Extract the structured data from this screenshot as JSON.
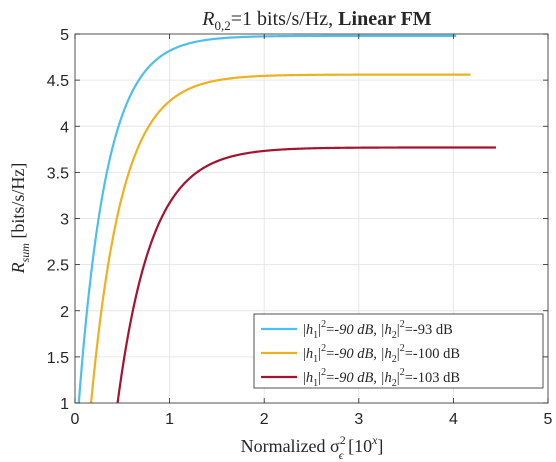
{
  "chart_data": {
    "type": "line",
    "title_prefix": "R",
    "title_sub": "0,2",
    "title_mid": "=1 bits/s/Hz, ",
    "title_bold": "Linear FM",
    "xlabel_main": "Normalized σ",
    "xlabel_sup": "2",
    "xlabel_sub": "ϵ",
    "xlabel_tail": " [10",
    "xlabel_tail_sup": "x",
    "xlabel_end": "]",
    "ylabel_main": "R",
    "ylabel_sub": "sum",
    "ylabel_tail": "  [bits/s/Hz]",
    "xlim": [
      0,
      5
    ],
    "ylim": [
      1,
      5
    ],
    "xticks": [
      "0",
      "1",
      "2",
      "3",
      "4",
      "5"
    ],
    "yticks": [
      "1",
      "1.5",
      "2",
      "2.5",
      "3",
      "3.5",
      "4",
      "4.5",
      "5"
    ],
    "grid": true,
    "legend_position": "bottom-right",
    "series": [
      {
        "name": "|h1|2=-90 dB, |h2|2=-93 dB",
        "legend": [
          "|h",
          "1",
          "|",
          "2",
          "=-90 dB, |h",
          "2",
          "|",
          "2",
          "=-93 dB"
        ],
        "color": "#4DBEEE",
        "x_start": 0.04,
        "x_end": 4.03,
        "plateau": 4.98,
        "tau": 0.3
      },
      {
        "name": "|h1|2=-90 dB, |h2|2=-100 dB",
        "legend": [
          "|h",
          "1",
          "|",
          "2",
          "=-90 dB, |h",
          "2",
          "|",
          "2",
          "=-100 dB"
        ],
        "color": "#EDB120",
        "x_start": 0.17,
        "x_end": 4.18,
        "plateau": 4.56,
        "tau": 0.33
      },
      {
        "name": "|h1|2=-90 dB, |h2|2=-103 dB",
        "legend": [
          "|h",
          "1",
          "|",
          "2",
          "=-90 dB, |h",
          "2",
          "|",
          "2",
          "=-103 dB"
        ],
        "color": "#A2142F",
        "x_start": 0.45,
        "x_end": 4.45,
        "plateau": 3.77,
        "tau": 0.36
      }
    ]
  }
}
